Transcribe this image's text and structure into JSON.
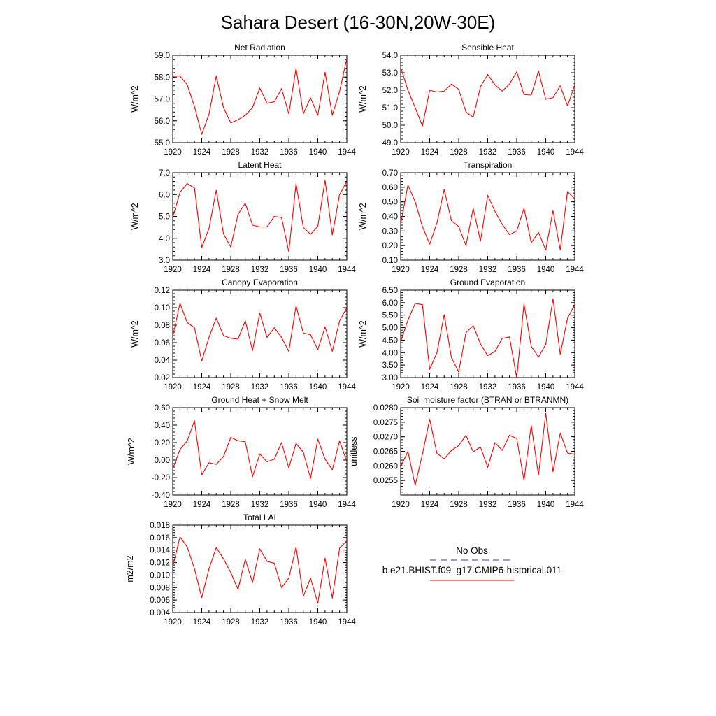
{
  "figure": {
    "title": "Sahara Desert (16-30N,20W-30E)"
  },
  "legend": {
    "obs_label": "No Obs",
    "obs_color": "#3b3b8f",
    "model_label": "b.e21.BHIST.f09_g17.CMIP6-historical.011",
    "model_color": "#ff0000"
  },
  "chart_data": [
    {
      "type": "line",
      "title": "Net Radiation",
      "ylabel": "W/m^2",
      "xlabel": "",
      "x": [
        1920,
        1921,
        1922,
        1923,
        1924,
        1925,
        1926,
        1927,
        1928,
        1929,
        1930,
        1931,
        1932,
        1933,
        1934,
        1935,
        1936,
        1937,
        1938,
        1939,
        1940,
        1941,
        1942,
        1943,
        1944
      ],
      "xticks": [
        "1920",
        "1924",
        "1928",
        "1932",
        "1936",
        "1940",
        "1944"
      ],
      "xlim": [
        1920,
        1944
      ],
      "ylim": [
        55.0,
        59.0
      ],
      "yticks": [
        "55.0",
        "56.0",
        "57.0",
        "58.0",
        "59.0"
      ],
      "grid": false,
      "series": [
        {
          "color": "#ff0000",
          "values": [
            58.05,
            58.05,
            57.65,
            56.65,
            55.38,
            56.3,
            58.05,
            56.6,
            55.9,
            56.05,
            56.25,
            56.6,
            57.5,
            56.8,
            56.87,
            57.47,
            56.32,
            58.4,
            56.32,
            57.05,
            56.25,
            58.22,
            56.25,
            57.35,
            58.85
          ]
        }
      ]
    },
    {
      "type": "line",
      "title": "Sensible Heat",
      "ylabel": "W/m^2",
      "xlabel": "",
      "x": [
        1920,
        1921,
        1922,
        1923,
        1924,
        1925,
        1926,
        1927,
        1928,
        1929,
        1930,
        1931,
        1932,
        1933,
        1934,
        1935,
        1936,
        1937,
        1938,
        1939,
        1940,
        1941,
        1942,
        1943,
        1944
      ],
      "xticks": [
        "1920",
        "1924",
        "1928",
        "1932",
        "1936",
        "1940",
        "1944"
      ],
      "xlim": [
        1920,
        1944
      ],
      "ylim": [
        49.0,
        54.0
      ],
      "yticks": [
        "49.0",
        "50.0",
        "51.0",
        "52.0",
        "53.0",
        "54.0"
      ],
      "grid": false,
      "series": [
        {
          "color": "#ff0000",
          "values": [
            53.3,
            52.0,
            51.0,
            49.95,
            52.0,
            51.9,
            51.95,
            52.35,
            52.05,
            50.75,
            50.45,
            52.2,
            52.9,
            52.3,
            51.95,
            52.35,
            53.05,
            51.75,
            51.72,
            53.1,
            51.48,
            51.57,
            52.25,
            51.1,
            52.3
          ]
        }
      ]
    },
    {
      "type": "line",
      "title": "Latent Heat",
      "ylabel": "W/m^2",
      "xlabel": "",
      "x": [
        1920,
        1921,
        1922,
        1923,
        1924,
        1925,
        1926,
        1927,
        1928,
        1929,
        1930,
        1931,
        1932,
        1933,
        1934,
        1935,
        1936,
        1937,
        1938,
        1939,
        1940,
        1941,
        1942,
        1943,
        1944
      ],
      "xticks": [
        "1920",
        "1924",
        "1928",
        "1932",
        "1936",
        "1940",
        "1944"
      ],
      "xlim": [
        1920,
        1944
      ],
      "ylim": [
        3.0,
        7.0
      ],
      "yticks": [
        "3.0",
        "4.0",
        "5.0",
        "6.0",
        "7.0"
      ],
      "grid": false,
      "series": [
        {
          "color": "#ff0000",
          "values": [
            4.95,
            6.1,
            6.5,
            6.3,
            3.58,
            4.45,
            6.2,
            4.2,
            3.6,
            5.1,
            5.6,
            4.6,
            4.52,
            4.52,
            5.0,
            4.95,
            3.38,
            6.5,
            4.5,
            4.18,
            4.55,
            6.65,
            4.15,
            6.0,
            6.6
          ]
        }
      ]
    },
    {
      "type": "line",
      "title": "Transpiration",
      "ylabel": "W/m^2",
      "xlabel": "",
      "x": [
        1920,
        1921,
        1922,
        1923,
        1924,
        1925,
        1926,
        1927,
        1928,
        1929,
        1930,
        1931,
        1932,
        1933,
        1934,
        1935,
        1936,
        1937,
        1938,
        1939,
        1940,
        1941,
        1942,
        1943,
        1944
      ],
      "xticks": [
        "1920",
        "1924",
        "1928",
        "1932",
        "1936",
        "1940",
        "1944"
      ],
      "xlim": [
        1920,
        1944
      ],
      "ylim": [
        0.1,
        0.7
      ],
      "yticks": [
        "0.10",
        "0.20",
        "0.30",
        "0.40",
        "0.50",
        "0.60",
        "0.70"
      ],
      "grid": false,
      "series": [
        {
          "color": "#ff0000",
          "values": [
            0.345,
            0.615,
            0.5,
            0.33,
            0.21,
            0.355,
            0.585,
            0.37,
            0.33,
            0.2,
            0.455,
            0.23,
            0.545,
            0.435,
            0.345,
            0.275,
            0.3,
            0.455,
            0.22,
            0.29,
            0.17,
            0.44,
            0.17,
            0.57,
            0.52
          ]
        }
      ]
    },
    {
      "type": "line",
      "title": "Canopy Evaporation",
      "ylabel": "W/m^2",
      "xlabel": "",
      "x": [
        1920,
        1921,
        1922,
        1923,
        1924,
        1925,
        1926,
        1927,
        1928,
        1929,
        1930,
        1931,
        1932,
        1933,
        1934,
        1935,
        1936,
        1937,
        1938,
        1939,
        1940,
        1941,
        1942,
        1943,
        1944
      ],
      "xticks": [
        "1920",
        "1924",
        "1928",
        "1932",
        "1936",
        "1940",
        "1944"
      ],
      "xlim": [
        1920,
        1944
      ],
      "ylim": [
        0.02,
        0.12
      ],
      "yticks": [
        "0.02",
        "0.04",
        "0.06",
        "0.08",
        "0.10",
        "0.12"
      ],
      "grid": false,
      "series": [
        {
          "color": "#ff0000",
          "values": [
            0.067,
            0.105,
            0.083,
            0.077,
            0.039,
            0.066,
            0.088,
            0.068,
            0.065,
            0.064,
            0.085,
            0.051,
            0.094,
            0.066,
            0.077,
            0.066,
            0.05,
            0.102,
            0.071,
            0.069,
            0.052,
            0.078,
            0.05,
            0.085,
            0.1
          ]
        }
      ]
    },
    {
      "type": "line",
      "title": "Ground Evaporation",
      "ylabel": "W/m^2",
      "xlabel": "",
      "x": [
        1920,
        1921,
        1922,
        1923,
        1924,
        1925,
        1926,
        1927,
        1928,
        1929,
        1930,
        1931,
        1932,
        1933,
        1934,
        1935,
        1936,
        1937,
        1938,
        1939,
        1940,
        1941,
        1942,
        1943,
        1944
      ],
      "xticks": [
        "1920",
        "1924",
        "1928",
        "1932",
        "1936",
        "1940",
        "1944"
      ],
      "xlim": [
        1920,
        1944
      ],
      "ylim": [
        3.0,
        6.5
      ],
      "yticks": [
        "3.00",
        "3.50",
        "4.00",
        "4.50",
        "5.00",
        "5.50",
        "6.00",
        "6.50"
      ],
      "grid": false,
      "series": [
        {
          "color": "#ff0000",
          "values": [
            4.45,
            5.3,
            5.97,
            5.92,
            3.33,
            4.0,
            5.52,
            3.8,
            3.22,
            4.8,
            5.08,
            4.35,
            3.88,
            4.05,
            4.57,
            4.63,
            2.98,
            5.95,
            4.25,
            3.82,
            4.33,
            6.15,
            3.93,
            5.38,
            5.92
          ]
        }
      ]
    },
    {
      "type": "line",
      "title": "Ground Heat + Snow Melt",
      "ylabel": "W/m^2",
      "xlabel": "",
      "x": [
        1920,
        1921,
        1922,
        1923,
        1924,
        1925,
        1926,
        1927,
        1928,
        1929,
        1930,
        1931,
        1932,
        1933,
        1934,
        1935,
        1936,
        1937,
        1938,
        1939,
        1940,
        1941,
        1942,
        1943,
        1944
      ],
      "xticks": [
        "1920",
        "1924",
        "1928",
        "1932",
        "1936",
        "1940",
        "1944"
      ],
      "xlim": [
        1920,
        1944
      ],
      "ylim": [
        -0.4,
        0.6
      ],
      "yticks": [
        "-0.40",
        "-0.20",
        "0.00",
        "0.20",
        "0.40",
        "0.60"
      ],
      "grid": false,
      "series": [
        {
          "color": "#ff0000",
          "values": [
            -0.1,
            0.12,
            0.22,
            0.45,
            -0.17,
            -0.03,
            -0.05,
            0.04,
            0.26,
            0.22,
            0.21,
            -0.19,
            0.07,
            -0.02,
            0.01,
            0.2,
            -0.09,
            0.19,
            0.09,
            -0.21,
            0.24,
            0.01,
            -0.11,
            0.22,
            -0.02
          ]
        }
      ]
    },
    {
      "type": "line",
      "title": "Soil moisture factor (BTRAN or BTRANMN)",
      "ylabel": "unitless",
      "xlabel": "",
      "x": [
        1920,
        1921,
        1922,
        1923,
        1924,
        1925,
        1926,
        1927,
        1928,
        1929,
        1930,
        1931,
        1932,
        1933,
        1934,
        1935,
        1936,
        1937,
        1938,
        1939,
        1940,
        1941,
        1942,
        1943,
        1944
      ],
      "xticks": [
        "1920",
        "1924",
        "1928",
        "1932",
        "1936",
        "1940",
        "1944"
      ],
      "xlim": [
        1920,
        1944
      ],
      "ylim": [
        0.025,
        0.028
      ],
      "yticks": [
        "0.0255",
        "0.0260",
        "0.0265",
        "0.0270",
        "0.0275",
        "0.0280"
      ],
      "grid": false,
      "series": [
        {
          "color": "#ff0000",
          "values": [
            0.02597,
            0.0265,
            0.02533,
            0.0264,
            0.0276,
            0.02643,
            0.02624,
            0.02653,
            0.0267,
            0.02705,
            0.02648,
            0.02665,
            0.02595,
            0.0268,
            0.02653,
            0.02705,
            0.02694,
            0.0255,
            0.0274,
            0.02568,
            0.0278,
            0.0258,
            0.02713,
            0.02644,
            0.0264
          ]
        }
      ]
    },
    {
      "type": "line",
      "title": "Total LAI",
      "ylabel": "m2/m2",
      "xlabel": "",
      "x": [
        1920,
        1921,
        1922,
        1923,
        1924,
        1925,
        1926,
        1927,
        1928,
        1929,
        1930,
        1931,
        1932,
        1933,
        1934,
        1935,
        1936,
        1937,
        1938,
        1939,
        1940,
        1941,
        1942,
        1943,
        1944
      ],
      "xticks": [
        "1920",
        "1924",
        "1928",
        "1932",
        "1936",
        "1940",
        "1944"
      ],
      "xlim": [
        1920,
        1944
      ],
      "ylim": [
        0.004,
        0.018
      ],
      "yticks": [
        "0.004",
        "0.006",
        "0.008",
        "0.010",
        "0.012",
        "0.014",
        "0.016",
        "0.018"
      ],
      "grid": false,
      "series": [
        {
          "color": "#ff0000",
          "values": [
            0.0113,
            0.0161,
            0.0145,
            0.011,
            0.0064,
            0.011,
            0.0144,
            0.0126,
            0.0104,
            0.0077,
            0.0125,
            0.0088,
            0.0142,
            0.0122,
            0.0119,
            0.008,
            0.0095,
            0.0145,
            0.0066,
            0.0095,
            0.0055,
            0.0127,
            0.0063,
            0.0143,
            0.0155
          ]
        }
      ]
    }
  ]
}
